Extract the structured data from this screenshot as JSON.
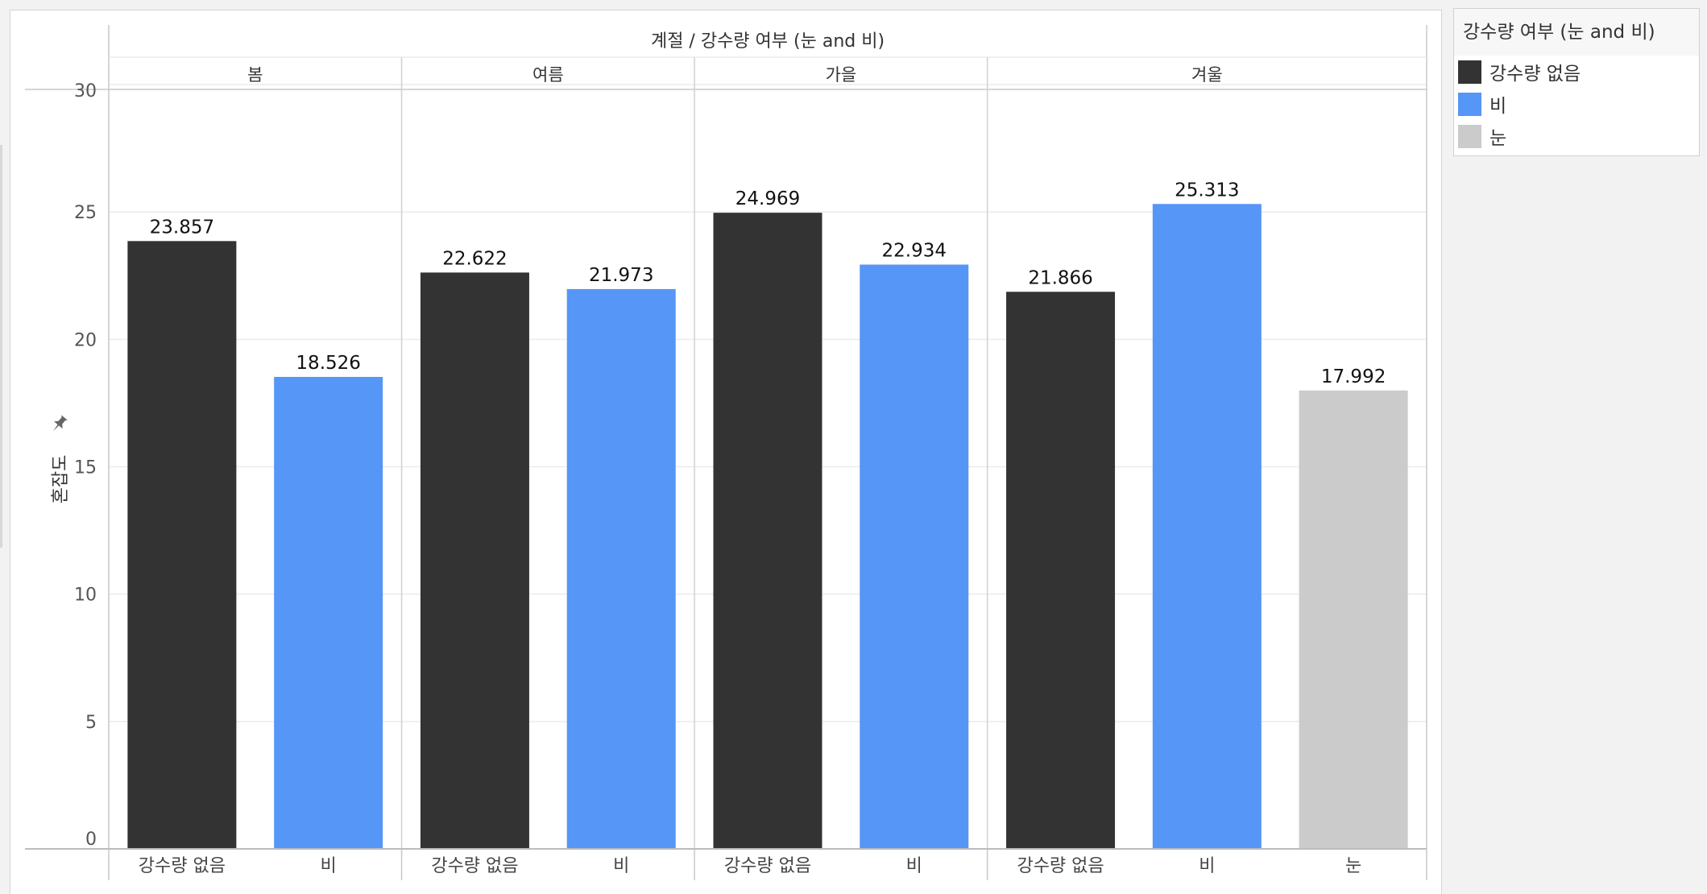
{
  "chart_data": {
    "type": "bar",
    "title": "계절  /  강수량 여부 (눈 and 비)",
    "ylabel": "혼잡도",
    "ylim": [
      0,
      30
    ],
    "yticks": [
      0,
      5,
      10,
      15,
      20,
      25,
      30
    ],
    "grid": true,
    "legend_position": "right",
    "groups": [
      {
        "name": "봄",
        "bars": [
          {
            "category": "강수량 없음",
            "value": 23.857
          },
          {
            "category": "비",
            "value": 18.526
          }
        ]
      },
      {
        "name": "여름",
        "bars": [
          {
            "category": "강수량 없음",
            "value": 22.622
          },
          {
            "category": "비",
            "value": 21.973
          }
        ]
      },
      {
        "name": "가을",
        "bars": [
          {
            "category": "강수량 없음",
            "value": 24.969
          },
          {
            "category": "비",
            "value": 22.934
          }
        ]
      },
      {
        "name": "겨울",
        "bars": [
          {
            "category": "강수량 없음",
            "value": 21.866
          },
          {
            "category": "비",
            "value": 25.313
          },
          {
            "category": "눈",
            "value": 17.992
          }
        ]
      }
    ],
    "series_colors": {
      "강수량 없음": "#333333",
      "비": "#5596f7",
      "눈": "#cbcbcb"
    }
  },
  "legend": {
    "title": "강수량 여부 (눈 and 비)",
    "items": [
      {
        "label": "강수량 없음",
        "color": "#333333"
      },
      {
        "label": "비",
        "color": "#5596f7"
      },
      {
        "label": "눈",
        "color": "#cbcbcb"
      }
    ]
  },
  "pin_icon": "pin-icon"
}
